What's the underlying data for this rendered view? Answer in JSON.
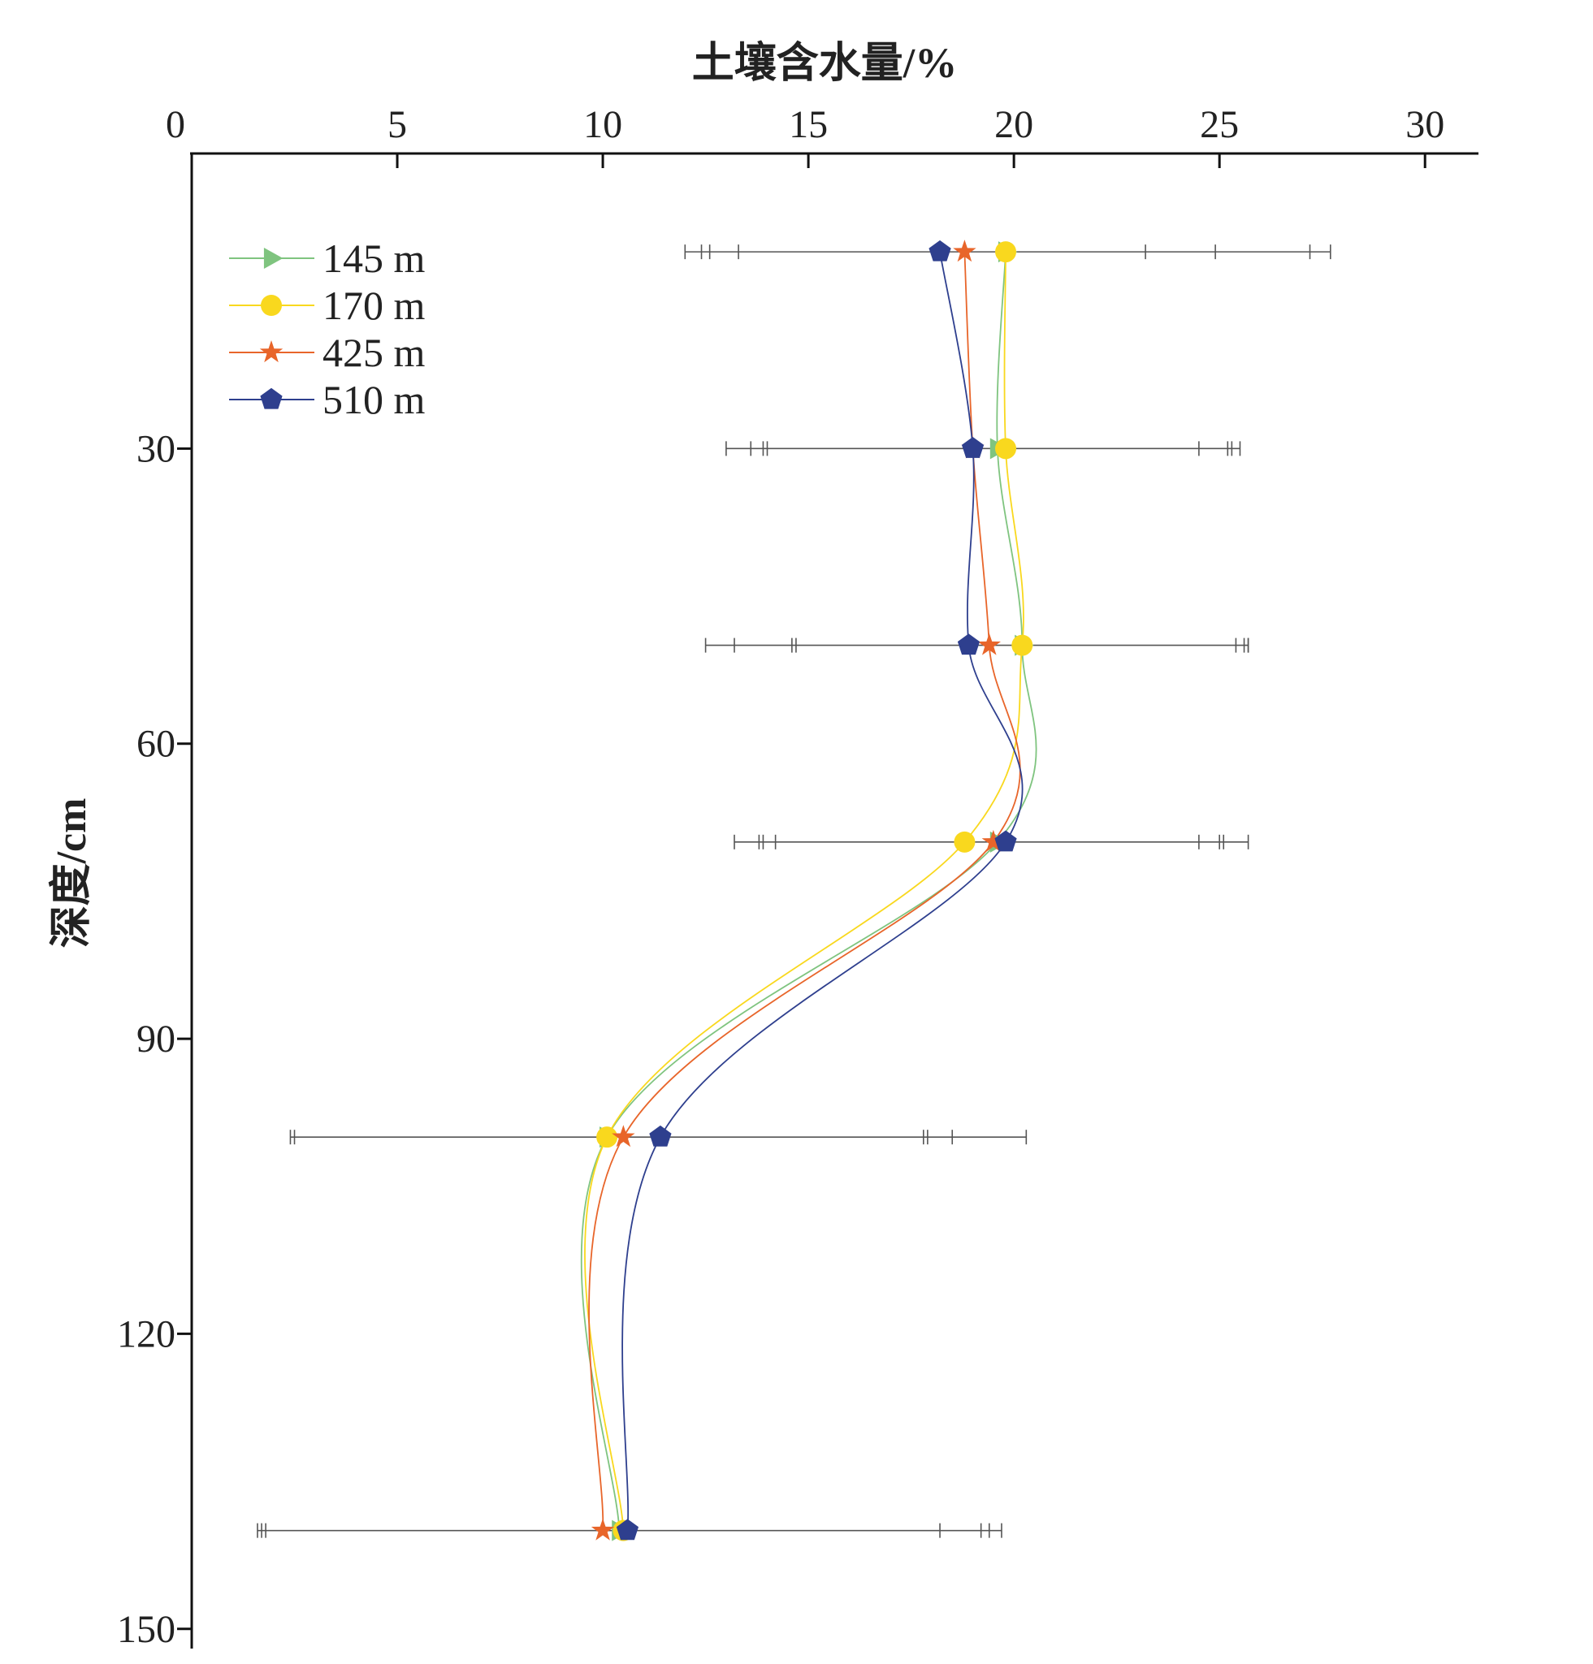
{
  "chart_data": {
    "type": "line",
    "orientation": "depth-profile",
    "xlabel": "土壤含水量/%",
    "ylabel": "深度/cm",
    "xlim": [
      0,
      31.3
    ],
    "ylim": [
      0,
      152
    ],
    "x_ticks": [
      0,
      5,
      10,
      15,
      20,
      25,
      30
    ],
    "y_ticks": [
      30,
      60,
      90,
      120,
      150
    ],
    "x_axis_position": "top",
    "y_axis_inverted": true,
    "grid": false,
    "legend_position": "top-left",
    "depths": [
      10,
      30,
      50,
      70,
      100,
      140
    ],
    "series": [
      {
        "name": "145 m",
        "color": "#7fc47f",
        "marker": "triangle-right",
        "values": [
          19.8,
          19.6,
          20.2,
          19.6,
          10.1,
          10.4
        ]
      },
      {
        "name": "170 m",
        "color": "#f9d81e",
        "marker": "circle",
        "values": [
          19.8,
          19.8,
          20.2,
          18.8,
          10.1,
          10.5
        ]
      },
      {
        "name": "425 m",
        "color": "#e8652a",
        "marker": "star",
        "values": [
          18.8,
          19.0,
          19.4,
          19.5,
          10.5,
          10.0
        ]
      },
      {
        "name": "510 m",
        "color": "#2e3f8e",
        "marker": "pentagon",
        "values": [
          18.2,
          19.0,
          18.9,
          19.8,
          11.4,
          10.6
        ]
      }
    ],
    "error_bars": [
      {
        "depth": 10,
        "caps": [
          12.0,
          12.4,
          12.6,
          13.3,
          23.2,
          24.9,
          27.2,
          27.7
        ]
      },
      {
        "depth": 30,
        "caps": [
          13.0,
          13.6,
          13.9,
          14.0,
          24.5,
          25.2,
          25.3,
          25.5
        ]
      },
      {
        "depth": 50,
        "caps": [
          12.5,
          13.2,
          14.6,
          14.7,
          25.4,
          25.6,
          25.7,
          25.7
        ]
      },
      {
        "depth": 70,
        "caps": [
          13.2,
          13.8,
          13.9,
          14.2,
          24.5,
          25.0,
          25.1,
          25.7
        ]
      },
      {
        "depth": 100,
        "caps": [
          2.4,
          2.5,
          17.8,
          17.9,
          18.5,
          20.3
        ]
      },
      {
        "depth": 140,
        "caps": [
          1.6,
          1.7,
          1.8,
          18.2,
          19.2,
          19.4,
          19.7
        ]
      }
    ],
    "error_bar_color": "#555555"
  }
}
